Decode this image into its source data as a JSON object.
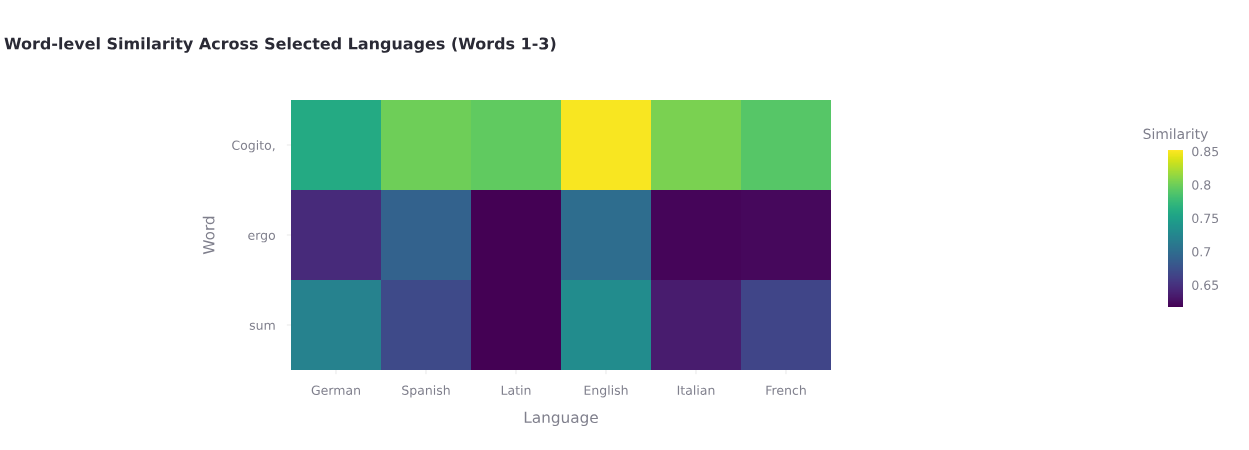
{
  "chart_data": {
    "type": "heatmap",
    "title": "Word-level Similarity Across Selected Languages (Words 1-3)",
    "xlabel": "Language",
    "ylabel": "Word",
    "clabel": "Similarity",
    "categories": [
      "German",
      "Spanish",
      "Latin",
      "English",
      "Italian",
      "French"
    ],
    "y_categories": [
      "Cogito,",
      "ergo",
      "sum"
    ],
    "cells": [
      [
        0.76,
        0.8,
        0.795,
        0.85,
        0.805,
        0.79
      ],
      [
        0.645,
        0.69,
        0.617,
        0.7,
        0.62,
        0.622
      ],
      [
        0.72,
        0.67,
        0.617,
        0.73,
        0.635,
        0.665
      ]
    ],
    "clim": [
      0.617,
      0.852
    ],
    "cticks": [
      0.65,
      0.7,
      0.75,
      0.8,
      0.85
    ],
    "grid": false
  }
}
